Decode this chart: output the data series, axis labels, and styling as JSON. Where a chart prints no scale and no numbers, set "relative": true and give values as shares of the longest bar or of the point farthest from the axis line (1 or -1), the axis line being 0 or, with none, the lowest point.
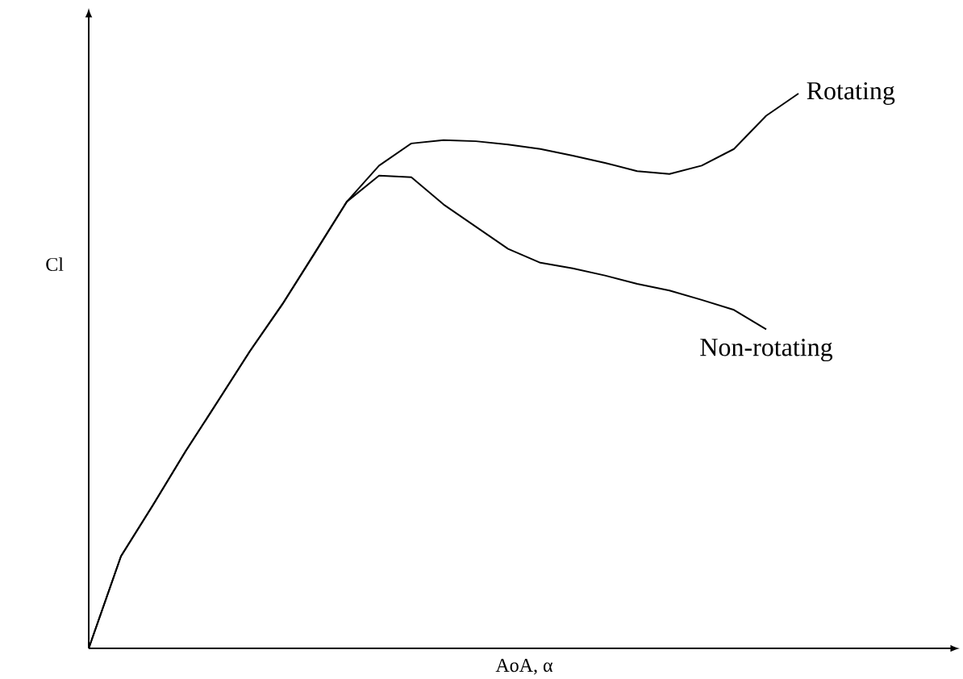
{
  "chart_data": {
    "type": "line",
    "relative": true,
    "xlabel": "AoA, α",
    "ylabel": "Cl",
    "legend": false,
    "marker": "none",
    "line_style": "solid",
    "categories": [
      null,
      null,
      null,
      null,
      null,
      null,
      null,
      null,
      null,
      null,
      null,
      null,
      null,
      null,
      null,
      null,
      null,
      null,
      null,
      null,
      null,
      null,
      null
    ],
    "series": [
      {
        "name": "Rotating",
        "color": "#000000",
        "values": [
          0,
          0.166,
          0.259,
          0.355,
          0.445,
          0.536,
          0.62,
          0.712,
          0.805,
          0.87,
          0.91,
          0.916,
          0.914,
          0.908,
          0.9,
          0.888,
          0.875,
          0.86,
          0.855,
          0.87,
          0.9,
          0.96,
          1
        ]
      },
      {
        "name": "Non-rotating",
        "color": "#000000",
        "values": [
          0,
          0.166,
          0.259,
          0.355,
          0.445,
          0.536,
          0.62,
          0.712,
          0.805,
          0.852,
          0.849,
          0.8,
          0.76,
          0.72,
          0.695,
          0.685,
          0.672,
          0.657,
          0.645,
          0.628,
          0.61,
          0.575,
          null
        ]
      }
    ]
  }
}
